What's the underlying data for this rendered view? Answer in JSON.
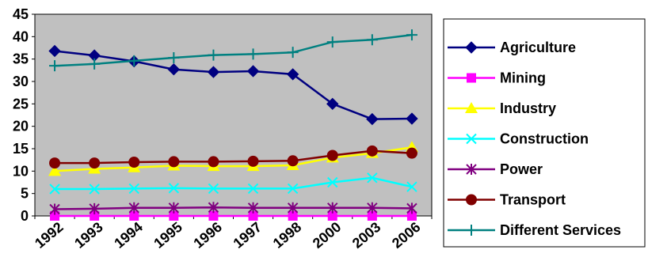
{
  "chart_data": {
    "type": "line",
    "title": "",
    "xlabel": "",
    "ylabel": "",
    "categories": [
      "1992",
      "1993",
      "1994",
      "1995",
      "1996",
      "1997",
      "1998",
      "2000",
      "2003",
      "2006"
    ],
    "ylim": [
      0,
      45
    ],
    "yticks": [
      0,
      5,
      10,
      15,
      20,
      25,
      30,
      35,
      40,
      45
    ],
    "grid": false,
    "legend_position": "right",
    "plot_background": "#c0c0c0",
    "series": [
      {
        "name": "Agriculture",
        "color": "#000080",
        "marker": "diamond",
        "values": [
          36.8,
          35.8,
          34.5,
          32.7,
          32.1,
          32.3,
          31.6,
          25.0,
          21.6,
          21.7
        ]
      },
      {
        "name": "Mining",
        "color": "#ff00ff",
        "marker": "square",
        "values": [
          0,
          0,
          0,
          0,
          0,
          0,
          0,
          0,
          0,
          0
        ]
      },
      {
        "name": "Industry",
        "color": "#ffff00",
        "marker": "triangle",
        "values": [
          10.0,
          10.5,
          10.8,
          11.2,
          11.1,
          11.1,
          11.3,
          13.0,
          14.0,
          15.3
        ]
      },
      {
        "name": "Construction",
        "color": "#00ffff",
        "marker": "x",
        "values": [
          6.0,
          6.0,
          6.1,
          6.2,
          6.1,
          6.1,
          6.1,
          7.5,
          8.5,
          6.5
        ]
      },
      {
        "name": "Power",
        "color": "#800080",
        "marker": "asterisk",
        "values": [
          1.5,
          1.6,
          1.8,
          1.8,
          1.9,
          1.8,
          1.8,
          1.8,
          1.8,
          1.7
        ]
      },
      {
        "name": "Transport",
        "color": "#800000",
        "marker": "circle",
        "values": [
          11.8,
          11.8,
          12.0,
          12.1,
          12.1,
          12.2,
          12.3,
          13.5,
          14.5,
          14.0
        ]
      },
      {
        "name": "Different Services",
        "color": "#008080",
        "marker": "plus",
        "values": [
          33.5,
          33.9,
          34.6,
          35.3,
          35.9,
          36.1,
          36.5,
          38.8,
          39.3,
          40.4
        ]
      }
    ]
  }
}
